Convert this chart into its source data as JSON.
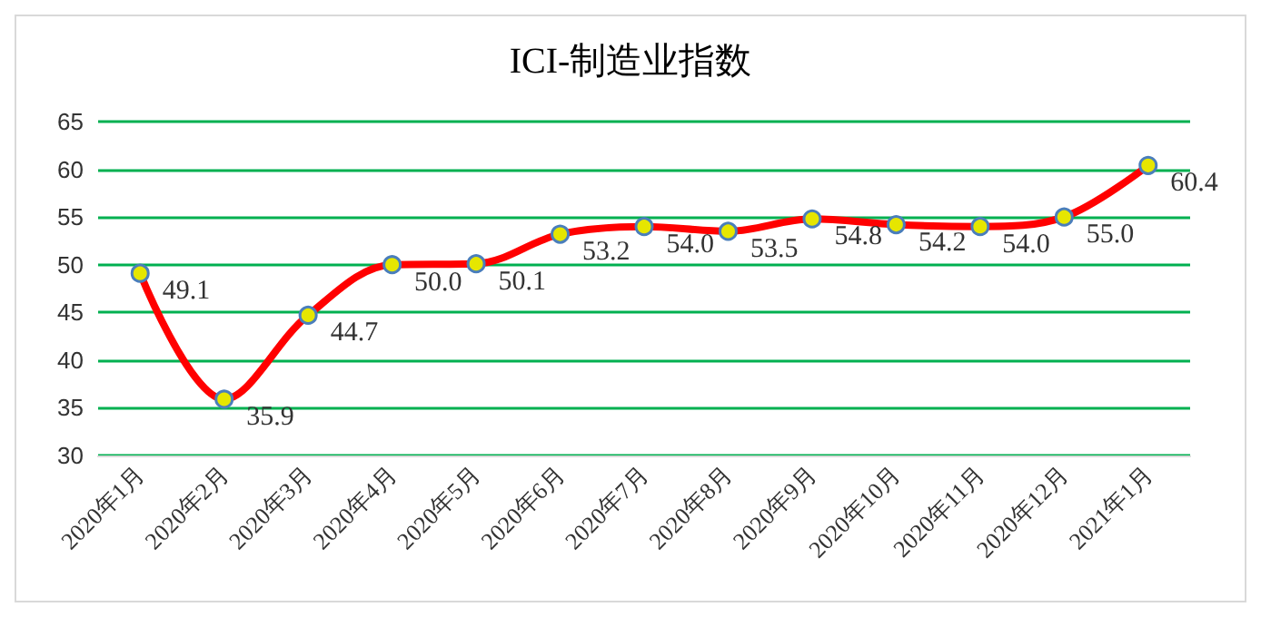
{
  "chart_data": {
    "type": "line",
    "title": "ICI-制造业指数",
    "categories": [
      "2020年1月",
      "2020年2月",
      "2020年3月",
      "2020年4月",
      "2020年5月",
      "2020年6月",
      "2020年7月",
      "2020年8月",
      "2020年9月",
      "2020年10月",
      "2020年11月",
      "2020年12月",
      "2021年1月"
    ],
    "series": [
      {
        "color": "#ff0000",
        "values": [
          49.1,
          35.9,
          44.7,
          50.0,
          50.1,
          53.2,
          54.0,
          53.5,
          54.8,
          54.2,
          54.0,
          55.0,
          60.4
        ]
      }
    ],
    "value_labels": [
      "49.1",
      "35.9",
      "44.7",
      "50.0",
      "50.1",
      "53.2",
      "54.0",
      "53.5",
      "54.8",
      "54.2",
      "54.0",
      "55.0",
      "60.4"
    ],
    "ylim": [
      30,
      65
    ],
    "yticks": [
      30,
      35,
      40,
      45,
      50,
      55,
      60,
      65
    ],
    "grid": "y",
    "marker": "circle",
    "line_style": "solid"
  }
}
